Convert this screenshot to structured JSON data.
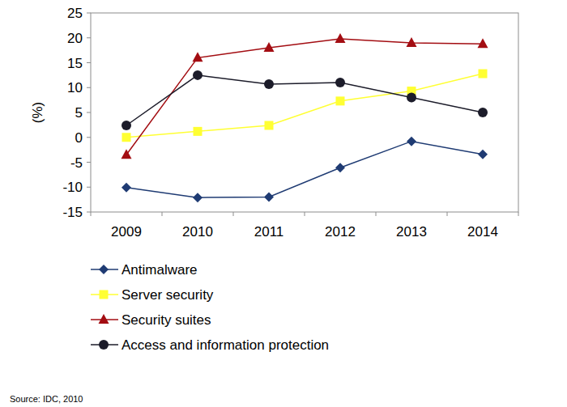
{
  "chart_data": {
    "type": "line",
    "y_label": "(%)",
    "source": "Source: IDC, 2010",
    "categories": [
      "2009",
      "2010",
      "2011",
      "2012",
      "2013",
      "2014"
    ],
    "series": [
      {
        "name": "Antimalware",
        "color": "#1f3b73",
        "marker": "diamond",
        "line_style": "solid",
        "values": [
          -10.1,
          -12.1,
          -12,
          -6.1,
          -0.8,
          -3.4
        ]
      },
      {
        "name": "Server security",
        "color": "#ffff33",
        "marker": "square",
        "line_style": "solid",
        "values": [
          0,
          1.2,
          2.4,
          7.3,
          9.3,
          12.8
        ]
      },
      {
        "name": "Security suites",
        "color": "#a30d12",
        "marker": "triangle",
        "line_style": "solid",
        "values": [
          -3.5,
          16,
          18,
          19.8,
          19,
          18.8
        ]
      },
      {
        "name": "Access and information protection",
        "color": "#1c1c2a",
        "marker": "circle",
        "line_style": "solid",
        "values": [
          2.4,
          12.5,
          10.7,
          11,
          8,
          5
        ]
      }
    ],
    "ylim": [
      -15,
      25
    ],
    "yticks": [
      -15,
      -10,
      -5,
      0,
      5,
      10,
      15,
      20,
      25
    ],
    "grid": false,
    "legend": "bottom"
  }
}
